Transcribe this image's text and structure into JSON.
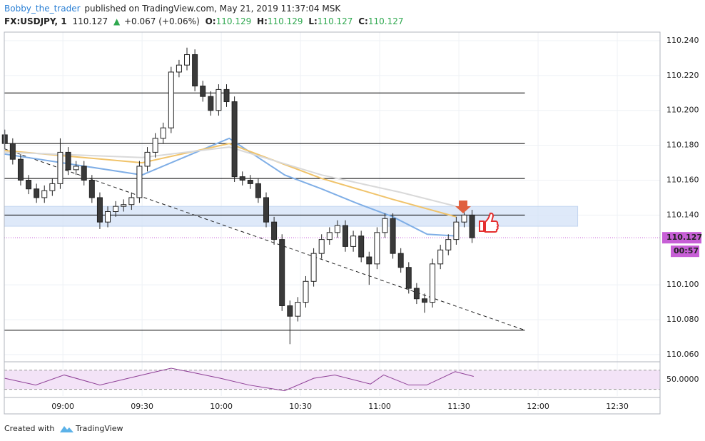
{
  "header": {
    "author": "Bobby_the_trader",
    "published": "published on TradingView.com, May 21, 2019 11:37:04 MSK",
    "symbol": "FX:USDJPY, 1",
    "last": "110.127",
    "arrow": "▲",
    "change": "+0.067 (+0.06%)",
    "open_label": "O:",
    "open": "110.129",
    "high_label": "H:",
    "high": "110.129",
    "low_label": "L:",
    "low": "110.127",
    "close_label": "C:",
    "close": "110.127"
  },
  "chart_data": {
    "type": "candlestick",
    "x": [
      518,
      521,
      524,
      527,
      530,
      533,
      536,
      539,
      542,
      545,
      548,
      551,
      554,
      557,
      560,
      563,
      566,
      569,
      572,
      575,
      578,
      581,
      584,
      587,
      590,
      593,
      596,
      599,
      602,
      605,
      608,
      611,
      614,
      617,
      620,
      623,
      626,
      629,
      632,
      635,
      638,
      641,
      644,
      647,
      650,
      653,
      656,
      659,
      662,
      665,
      668,
      671,
      674,
      677,
      680,
      683,
      686,
      689,
      692,
      695
    ],
    "opens": [
      110.186,
      110.181,
      110.172,
      110.16,
      110.155,
      110.15,
      110.154,
      110.158,
      110.176,
      110.166,
      110.168,
      110.16,
      110.15,
      110.136,
      110.142,
      110.145,
      110.146,
      110.15,
      110.168,
      110.176,
      110.184,
      110.19,
      110.222,
      110.226,
      110.232,
      110.214,
      110.208,
      110.2,
      110.212,
      110.205,
      110.162,
      110.16,
      110.158,
      110.15,
      110.136,
      110.126,
      110.088,
      110.082,
      110.09,
      110.102,
      110.118,
      110.126,
      110.13,
      110.134,
      110.122,
      110.128,
      110.116,
      110.112,
      110.13,
      110.138,
      110.118,
      110.11,
      110.098,
      110.092,
      110.09,
      110.112,
      110.12,
      110.126,
      110.136,
      110.14
    ],
    "highs": [
      110.189,
      110.184,
      110.175,
      110.163,
      110.158,
      110.157,
      110.161,
      110.184,
      110.179,
      110.171,
      110.171,
      110.163,
      110.153,
      110.145,
      110.148,
      110.149,
      110.153,
      110.171,
      110.179,
      110.187,
      110.193,
      110.225,
      110.229,
      110.236,
      110.235,
      110.217,
      110.211,
      110.215,
      110.215,
      110.208,
      110.165,
      110.163,
      110.161,
      110.153,
      110.139,
      110.129,
      110.091,
      110.093,
      110.105,
      110.121,
      110.129,
      110.133,
      110.137,
      110.137,
      110.131,
      110.131,
      110.119,
      110.133,
      110.141,
      110.141,
      110.121,
      110.113,
      110.101,
      110.095,
      110.115,
      110.123,
      110.129,
      110.139,
      110.143,
      110.143
    ],
    "lows": [
      110.178,
      110.169,
      110.157,
      110.152,
      110.147,
      110.147,
      110.151,
      110.155,
      110.163,
      110.163,
      110.157,
      110.147,
      110.132,
      110.133,
      110.139,
      110.142,
      110.143,
      110.147,
      110.165,
      110.173,
      110.181,
      110.187,
      110.219,
      110.223,
      110.211,
      110.205,
      110.197,
      110.197,
      110.202,
      110.159,
      110.157,
      110.155,
      110.147,
      110.133,
      110.123,
      110.085,
      110.066,
      110.079,
      110.087,
      110.099,
      110.115,
      110.123,
      110.127,
      110.119,
      110.119,
      110.113,
      110.1,
      110.109,
      110.127,
      110.115,
      110.107,
      110.095,
      110.089,
      110.084,
      110.087,
      110.109,
      110.117,
      110.123,
      110.133,
      110.124
    ],
    "closes": [
      110.181,
      110.172,
      110.16,
      110.155,
      110.15,
      110.154,
      110.158,
      110.176,
      110.166,
      110.168,
      110.16,
      110.15,
      110.136,
      110.142,
      110.145,
      110.146,
      110.15,
      110.168,
      110.176,
      110.184,
      110.19,
      110.222,
      110.226,
      110.232,
      110.214,
      110.208,
      110.2,
      110.212,
      110.205,
      110.162,
      110.16,
      110.158,
      110.15,
      110.136,
      110.126,
      110.088,
      110.082,
      110.09,
      110.102,
      110.118,
      110.126,
      110.13,
      110.134,
      110.122,
      110.128,
      110.116,
      110.112,
      110.13,
      110.138,
      110.118,
      110.11,
      110.098,
      110.092,
      110.09,
      110.112,
      110.12,
      110.126,
      110.136,
      110.14,
      110.127
    ],
    "up_color": "#ffffff",
    "down_color": "#3a3a3a",
    "xlim": [
      517.8,
      766.2
    ],
    "xticks": [
      {
        "value": 540,
        "label": "09:00"
      },
      {
        "value": 570,
        "label": "09:30"
      },
      {
        "value": 600,
        "label": "10:00"
      },
      {
        "value": 630,
        "label": "10:30"
      },
      {
        "value": 660,
        "label": "11:00"
      },
      {
        "value": 690,
        "label": "11:30"
      },
      {
        "value": 720,
        "label": "12:00"
      },
      {
        "value": 750,
        "label": "12:30"
      }
    ],
    "ylim": [
      110.0567,
      110.2449
    ],
    "yticks": [
      {
        "value": 110.06,
        "label": "110.060"
      },
      {
        "value": 110.08,
        "label": "110.080"
      },
      {
        "value": 110.1,
        "label": "110.100"
      },
      {
        "value": 110.14,
        "label": "110.140"
      },
      {
        "value": 110.16,
        "label": "110.160"
      },
      {
        "value": 110.18,
        "label": "110.180"
      },
      {
        "value": 110.2,
        "label": "110.200"
      },
      {
        "value": 110.22,
        "label": "110.220"
      },
      {
        "value": 110.24,
        "label": "110.240"
      }
    ],
    "grid": true,
    "levels": [
      110.21,
      110.181,
      110.161,
      110.14,
      110.074
    ],
    "level_end_x": 715,
    "zone": {
      "low": 110.1336,
      "high": 110.145,
      "x0": 517.8,
      "x1": 735,
      "color": "#d6e4f7"
    },
    "trendline": {
      "x": [
        517.8,
        715
      ],
      "y": [
        110.178,
        110.074
      ]
    },
    "moving_averages": [
      {
        "color": "#7faee6",
        "x": [
          518,
          570,
          603,
          624,
          638,
          651,
          665,
          678,
          689
        ],
        "values": [
          110.175,
          110.163,
          110.184,
          110.163,
          110.155,
          110.147,
          110.139,
          110.129,
          110.128
        ]
      },
      {
        "color": "#f0c36a",
        "x": [
          518,
          570,
          603,
          638,
          665,
          689
        ],
        "values": [
          110.177,
          110.17,
          110.181,
          110.161,
          110.149,
          110.139
        ]
      },
      {
        "color": "#d9d9d9",
        "x": [
          518,
          570,
          603,
          638,
          668,
          689
        ],
        "values": [
          110.176,
          110.173,
          110.179,
          110.163,
          110.153,
          110.145
        ]
      }
    ],
    "last_price": {
      "value": 110.127,
      "label": "110.127"
    },
    "countdown": "00:57",
    "tag_color": "#c75fd6",
    "rsi": {
      "color": "#8e3f96",
      "x": [
        518,
        529.7,
        540.5,
        554,
        570,
        581,
        587.5,
        599.7,
        610.5,
        624,
        635,
        643,
        656.5,
        661.5,
        671,
        677.8,
        688.6,
        695.6
      ],
      "values": [
        53,
        39,
        60,
        39,
        60,
        74,
        67,
        53,
        39,
        27,
        53,
        60,
        41,
        60,
        39,
        39,
        67,
        57
      ],
      "ylim": [
        16,
        86
      ],
      "yticks": [
        {
          "value": 50,
          "label": "50.0000"
        }
      ],
      "bands": [
        70,
        30
      ]
    }
  },
  "footer": {
    "created": "Created with",
    "brand": "TradingView"
  }
}
